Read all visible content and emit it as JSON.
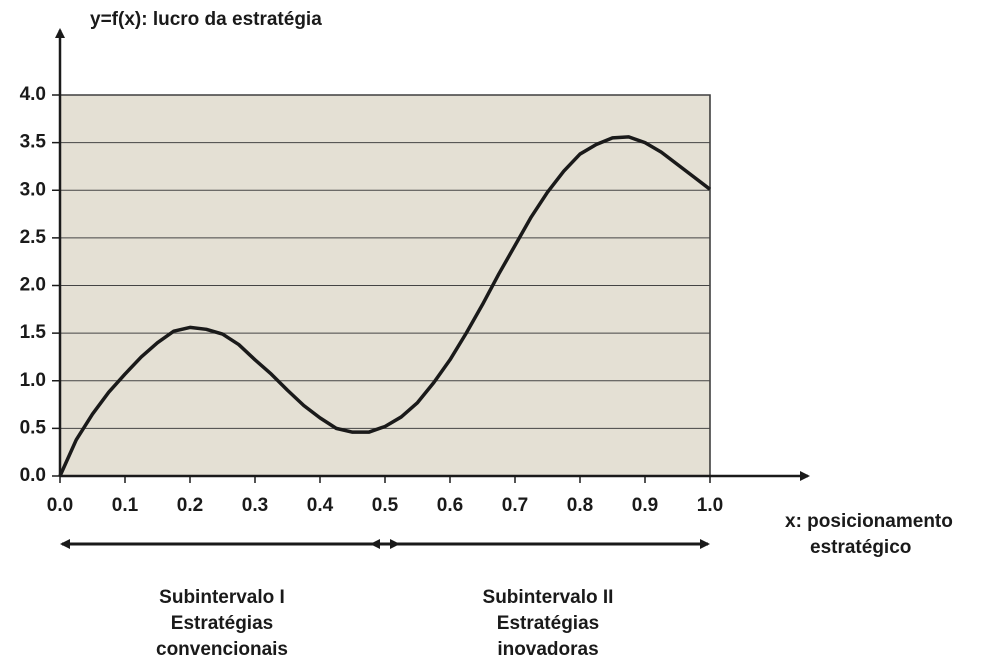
{
  "chart_data": {
    "type": "line",
    "ylabel": "y=f(x): lucro da estratégia",
    "xlabel": [
      "x: posicionamento",
      "estratégico"
    ],
    "x": [
      0,
      0.025,
      0.05,
      0.075,
      0.1,
      0.125,
      0.15,
      0.175,
      0.2,
      0.225,
      0.25,
      0.275,
      0.3,
      0.325,
      0.35,
      0.375,
      0.4,
      0.425,
      0.45,
      0.475,
      0.5,
      0.525,
      0.55,
      0.575,
      0.6,
      0.625,
      0.65,
      0.675,
      0.7,
      0.725,
      0.75,
      0.775,
      0.8,
      0.825,
      0.85,
      0.875,
      0.9,
      0.925,
      0.95,
      0.975,
      1.0
    ],
    "values": [
      0,
      0.38,
      0.65,
      0.88,
      1.07,
      1.25,
      1.4,
      1.52,
      1.56,
      1.54,
      1.49,
      1.38,
      1.22,
      1.07,
      0.9,
      0.74,
      0.61,
      0.5,
      0.46,
      0.46,
      0.52,
      0.62,
      0.77,
      0.98,
      1.22,
      1.5,
      1.8,
      2.12,
      2.42,
      2.72,
      2.98,
      3.2,
      3.38,
      3.48,
      3.55,
      3.56,
      3.5,
      3.4,
      3.27,
      3.14,
      3.01
    ],
    "color": "#1a1a1a",
    "xlim": [
      0,
      1
    ],
    "ylim": [
      0,
      4
    ],
    "xticks": [
      {
        "value": 0,
        "label": "0.0"
      },
      0.1,
      0.2,
      0.3,
      0.4,
      0.5,
      0.6,
      0.7,
      0.8,
      0.9,
      {
        "value": 1,
        "label": "1.0"
      }
    ],
    "yticks": [
      {
        "value": 0,
        "label": "0.0"
      },
      0.5,
      {
        "value": 1,
        "label": "1.0"
      },
      1.5,
      {
        "value": 2,
        "label": "2.0"
      },
      2.5,
      {
        "value": 3,
        "label": "3.0"
      },
      3.5,
      {
        "value": 4,
        "label": "4.0"
      }
    ],
    "grid": true,
    "annotations": [
      [
        "Subintervalo I",
        "Estratégias",
        "convencionais"
      ],
      [
        "Subintervalo II",
        "Estratégias",
        "inovadoras"
      ]
    ]
  }
}
